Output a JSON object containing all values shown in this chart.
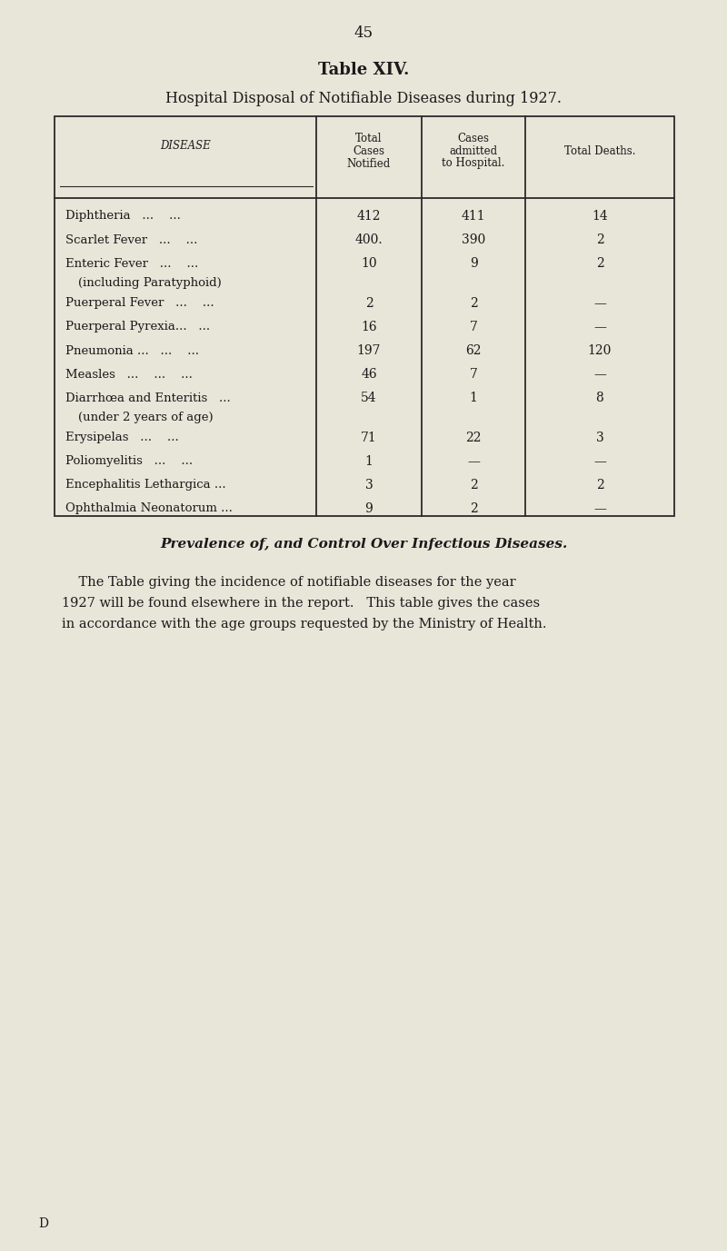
{
  "page_number": "45",
  "title_bold": "Table XIV.",
  "subtitle": "Hospital Disposal of Notifiable Diseases during 1927.",
  "bg_color": "#e8e5d9",
  "text_color": "#1a1a1a",
  "rows": [
    {
      "disease": "Diphtheria",
      "suffix": "   ...    ...",
      "sub": "",
      "total": "412",
      "admitted": "411",
      "deaths": "14"
    },
    {
      "disease": "Scarlet Fever",
      "suffix": "   ...    ...",
      "sub": "",
      "total": "400.",
      "admitted": "390",
      "deaths": "2"
    },
    {
      "disease": "Enteric Fever",
      "suffix": "   ...    ...",
      "sub": "(including Paratyphoid)",
      "total": "10",
      "admitted": "9",
      "deaths": "2"
    },
    {
      "disease": "Puerperal Fever",
      "suffix": "   ...    ...",
      "sub": "",
      "total": "2",
      "admitted": "2",
      "deaths": "—"
    },
    {
      "disease": "Puerperal Pyrexia...",
      "suffix": "   ...",
      "sub": "",
      "total": "16",
      "admitted": "7",
      "deaths": "—"
    },
    {
      "disease": "Pneumonia ...",
      "suffix": "   ...    ...",
      "sub": "",
      "total": "197",
      "admitted": "62",
      "deaths": "120"
    },
    {
      "disease": "Measles",
      "suffix": "   ...    ...    ...",
      "sub": "",
      "total": "46",
      "admitted": "7",
      "deaths": "—"
    },
    {
      "disease": "Diarrhœa and Enteritis",
      "suffix": "   ...",
      "sub": "(under 2 years of age)",
      "total": "54",
      "admitted": "1",
      "deaths": "8"
    },
    {
      "disease": "Erysipelas",
      "suffix": "   ...    ...",
      "sub": "",
      "total": "71",
      "admitted": "22",
      "deaths": "3"
    },
    {
      "disease": "Poliomyelitis",
      "suffix": "   ...    ...",
      "sub": "",
      "total": "1",
      "admitted": "—",
      "deaths": "—"
    },
    {
      "disease": "Encephalitis Lethargica ...",
      "suffix": "",
      "sub": "",
      "total": "3",
      "admitted": "2",
      "deaths": "2"
    },
    {
      "disease": "Ophthalmia Neonatorum ...",
      "suffix": "",
      "sub": "",
      "total": "9",
      "admitted": "2",
      "deaths": "—"
    }
  ],
  "section_heading": "Prevalence of, and Control Over Infectious Diseases.",
  "para_lines": [
    "    The Table giving the incidence of notifiable diseases for the year",
    "1927 will be found elsewhere in the report.   This table gives the cases",
    "in accordance with the age groups requested by the Ministry of Health."
  ],
  "footer_letter": "D"
}
